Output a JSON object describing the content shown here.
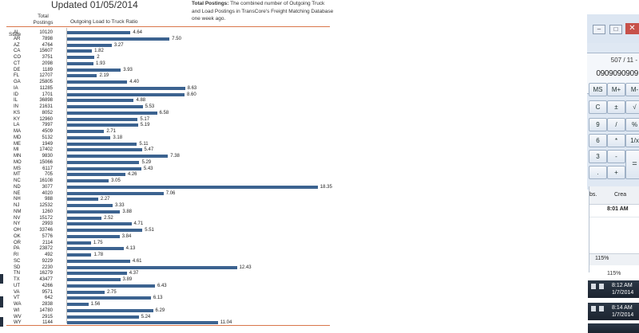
{
  "report": {
    "title": "Updated 01/05/2014",
    "note_bold": "Total Postings:",
    "note_text": " The combined number of Outgoing Truck and Load Postings in TransCore's Freight Matching Database one week ago.",
    "col_state": "State",
    "col_total": "Total Postings",
    "col_ratio": "Outgoing Load to Truck Ratio",
    "bar_color": "#3c6390",
    "rule_color": "#d9774a"
  },
  "chart_data": {
    "type": "bar",
    "orientation": "horizontal",
    "title": "Updated 01/05/2014",
    "series_name": "Outgoing Load to Truck Ratio",
    "grid": false,
    "rows": [
      {
        "state": "AL",
        "total": "10120",
        "ratio": 4.64
      },
      {
        "state": "AR",
        "total": "7898",
        "ratio": 7.5
      },
      {
        "state": "AZ",
        "total": "4764",
        "ratio": 3.27
      },
      {
        "state": "CA",
        "total": "15607",
        "ratio": 1.82
      },
      {
        "state": "CO",
        "total": "3751",
        "ratio": 2
      },
      {
        "state": "CT",
        "total": "2098",
        "ratio": 1.93
      },
      {
        "state": "DE",
        "total": "1189",
        "ratio": 3.93
      },
      {
        "state": "FL",
        "total": "12707",
        "ratio": 2.19
      },
      {
        "state": "GA",
        "total": "25805",
        "ratio": 4.4
      },
      {
        "state": "IA",
        "total": "11285",
        "ratio": 8.63
      },
      {
        "state": "ID",
        "total": "1701",
        "ratio": 8.6
      },
      {
        "state": "IL",
        "total": "36898",
        "ratio": 4.88
      },
      {
        "state": "IN",
        "total": "21631",
        "ratio": 5.53
      },
      {
        "state": "KS",
        "total": "8052",
        "ratio": 6.58
      },
      {
        "state": "KY",
        "total": "12960",
        "ratio": 5.17
      },
      {
        "state": "LA",
        "total": "7997",
        "ratio": 5.19
      },
      {
        "state": "MA",
        "total": "4509",
        "ratio": 2.71
      },
      {
        "state": "MD",
        "total": "5132",
        "ratio": 3.18
      },
      {
        "state": "ME",
        "total": "1949",
        "ratio": 5.11
      },
      {
        "state": "MI",
        "total": "17402",
        "ratio": 5.47
      },
      {
        "state": "MN",
        "total": "9830",
        "ratio": 7.38
      },
      {
        "state": "MO",
        "total": "15066",
        "ratio": 5.29
      },
      {
        "state": "MS",
        "total": "6117",
        "ratio": 5.43
      },
      {
        "state": "MT",
        "total": "705",
        "ratio": 4.26
      },
      {
        "state": "NC",
        "total": "16108",
        "ratio": 3.05
      },
      {
        "state": "ND",
        "total": "3077",
        "ratio": 18.35
      },
      {
        "state": "NE",
        "total": "4020",
        "ratio": 7.06
      },
      {
        "state": "NH",
        "total": "988",
        "ratio": 2.27
      },
      {
        "state": "NJ",
        "total": "12532",
        "ratio": 3.33
      },
      {
        "state": "NM",
        "total": "1260",
        "ratio": 3.88
      },
      {
        "state": "NV",
        "total": "15172",
        "ratio": 2.52
      },
      {
        "state": "NY",
        "total": "2993",
        "ratio": 4.71
      },
      {
        "state": "OH",
        "total": "33746",
        "ratio": 5.51
      },
      {
        "state": "OK",
        "total": "5776",
        "ratio": 3.84
      },
      {
        "state": "OR",
        "total": "2114",
        "ratio": 1.75
      },
      {
        "state": "PA",
        "total": "23872",
        "ratio": 4.13
      },
      {
        "state": "RI",
        "total": "492",
        "ratio": 1.78
      },
      {
        "state": "SC",
        "total": "9229",
        "ratio": 4.61
      },
      {
        "state": "SD",
        "total": "2230",
        "ratio": 12.43
      },
      {
        "state": "TN",
        "total": "16279",
        "ratio": 4.37
      },
      {
        "state": "TX",
        "total": "43477",
        "ratio": 3.89
      },
      {
        "state": "UT",
        "total": "4266",
        "ratio": 6.43
      },
      {
        "state": "VA",
        "total": "9571",
        "ratio": 2.75
      },
      {
        "state": "VT",
        "total": "642",
        "ratio": 6.13
      },
      {
        "state": "WA",
        "total": "2838",
        "ratio": 1.56
      },
      {
        "state": "WI",
        "total": "14780",
        "ratio": 6.29
      },
      {
        "state": "WV",
        "total": "2915",
        "ratio": 5.24
      },
      {
        "state": "WY",
        "total": "1144",
        "ratio": 11.04
      }
    ]
  },
  "calculator": {
    "expression": "507 / 11 -",
    "result": "0909090909",
    "minimize": "–",
    "restore": "□",
    "close": "✕",
    "buttons": [
      "MS",
      "M+",
      "M-",
      "C",
      "±",
      "√",
      "9",
      "/",
      "%",
      "6",
      "*",
      "1/x",
      "3",
      "-",
      "=",
      ".",
      "+"
    ]
  },
  "list_view": {
    "col_a": "bs.",
    "col_b": "Crea",
    "time": "8:01 AM",
    "zoom": "115%"
  },
  "zoom_status": "115%",
  "taskbars": [
    {
      "time": "8:12 AM",
      "date": "1/7/2014"
    },
    {
      "time": "8:14 AM",
      "date": "1/7/2014"
    }
  ]
}
